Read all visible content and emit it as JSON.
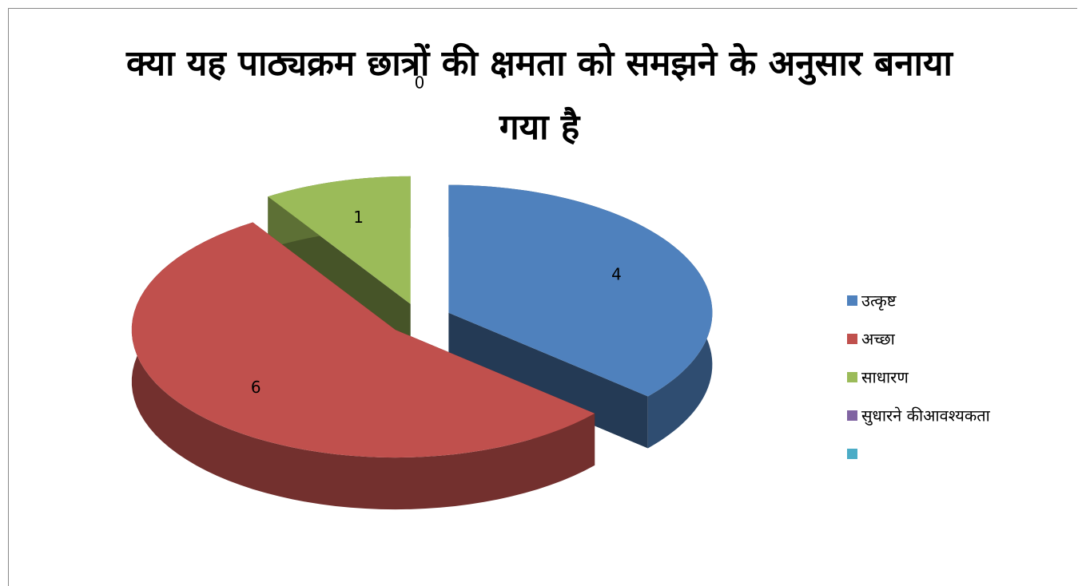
{
  "chart_data": {
    "type": "pie3d",
    "title": "क्या यह पाठ्यक्रम छात्रों की क्षमता को समझने के अनुसार बनाया गया है",
    "categories": [
      "उत्कृष्ट",
      "अच्छा",
      "साधारण",
      "सुधारने कीआवश्यकता",
      null
    ],
    "values": [
      4,
      6,
      1,
      0,
      null
    ],
    "colors": [
      "#4f81bd",
      "#c0504d",
      "#9bbb59",
      "#8064a2",
      "#4bacc6"
    ],
    "legend": "right"
  }
}
